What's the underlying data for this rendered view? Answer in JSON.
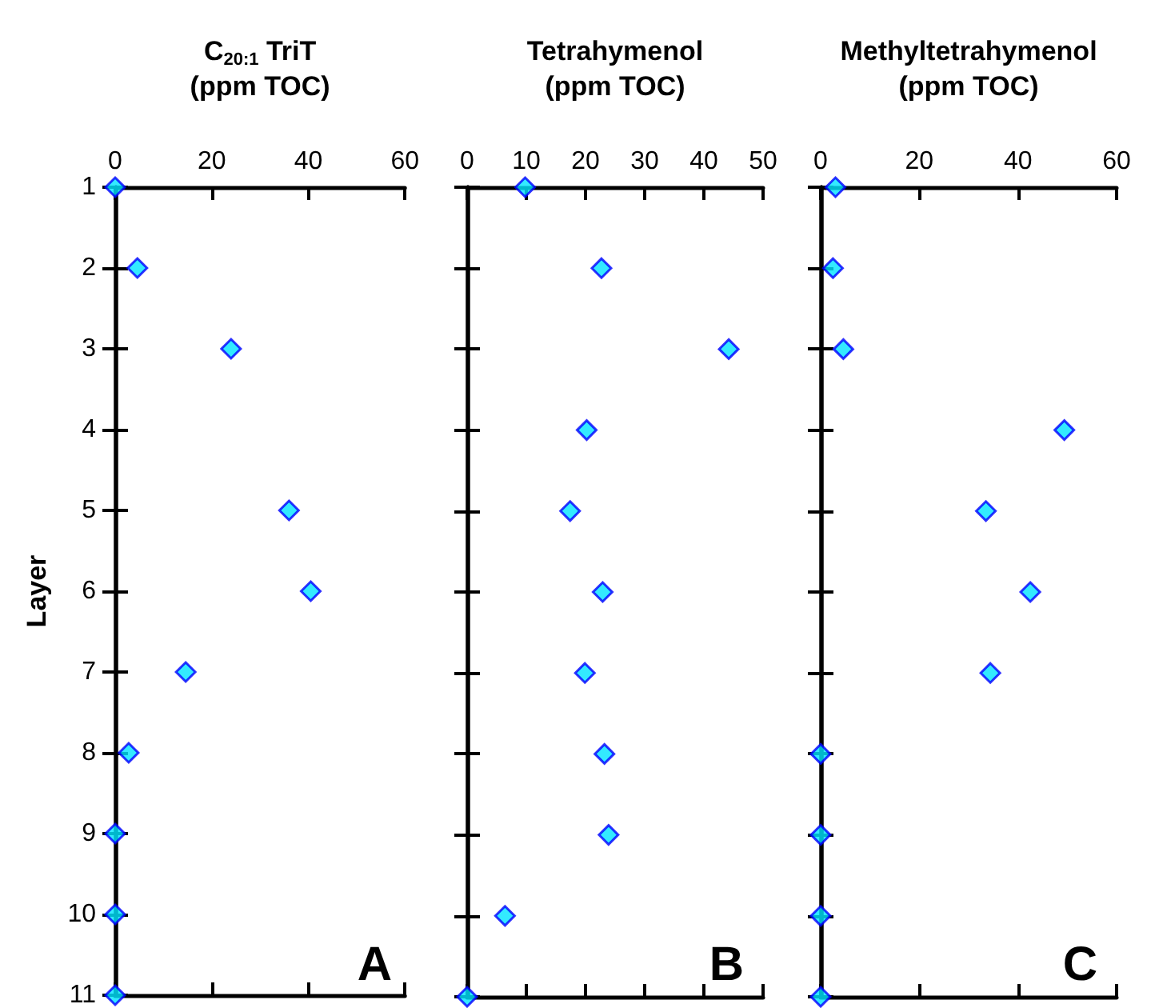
{
  "chart_data": [
    {
      "type": "scatter",
      "xlabel": "C$_{20:1}$ TriT\n(ppm TOC)",
      "ylabel": "Layer",
      "marker": "diamond",
      "color": "#00e5ff",
      "x": [
        0,
        4.6,
        24,
        36,
        40.5,
        14.6,
        2.8,
        0,
        0,
        0
      ],
      "values": [
        1,
        2,
        3,
        5,
        6,
        7,
        8,
        9,
        10,
        11
      ],
      "xlim": [
        0,
        60
      ],
      "xticks": [
        0,
        20,
        40,
        60
      ],
      "ylim": [
        11,
        1
      ],
      "yticks": [
        1,
        2,
        3,
        4,
        5,
        6,
        7,
        8,
        9,
        10,
        11
      ],
      "annotations": [
        "A"
      ]
    },
    {
      "type": "scatter",
      "xlabel": "Tetrahymenol\n(ppm TOC)",
      "marker": "diamond",
      "color": "#00e5ff",
      "x": [
        9.8,
        22.7,
        44.2,
        20.2,
        17.4,
        22.9,
        19.9,
        23.2,
        23.9,
        6.4,
        0
      ],
      "values": [
        1,
        2,
        3,
        4,
        5,
        6,
        7,
        8,
        9,
        10,
        11
      ],
      "xlim": [
        0,
        50
      ],
      "xticks": [
        0,
        10,
        20,
        30,
        40,
        50
      ],
      "ylim": [
        11,
        1
      ],
      "yticks": [
        1,
        2,
        3,
        4,
        5,
        6,
        7,
        8,
        9,
        10,
        11
      ],
      "tick_labels": "x",
      "annotations": [
        "B"
      ]
    },
    {
      "type": "scatter",
      "xlabel": "Methyltetrahymenol\n(ppm TOC)",
      "marker": "diamond",
      "color": "#00e5ff",
      "x": [
        3.0,
        2.5,
        4.6,
        49.4,
        33.5,
        42.5,
        34.4,
        0,
        0,
        0,
        0
      ],
      "values": [
        1,
        2,
        3,
        4,
        5,
        6,
        7,
        8,
        9,
        10,
        11
      ],
      "xlim": [
        0,
        60
      ],
      "xticks": [
        0,
        20,
        40,
        60
      ],
      "ylim": [
        11,
        1
      ],
      "yticks": [
        1,
        2,
        3,
        4,
        5,
        6,
        7,
        8,
        9,
        10,
        11
      ],
      "tick_labels": "x",
      "annotations": [
        "C"
      ]
    }
  ]
}
